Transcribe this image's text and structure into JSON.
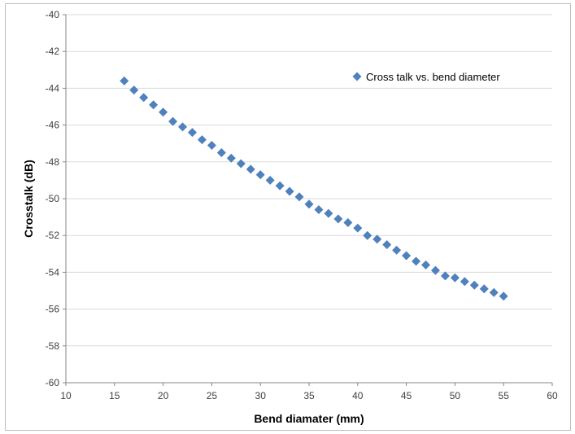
{
  "chart_data": {
    "type": "scatter",
    "title": "",
    "xlabel": "Bend diamater (mm)",
    "ylabel": "Crosstalk (dB)",
    "xlim": [
      10,
      60
    ],
    "ylim": [
      -60,
      -40
    ],
    "xticks": [
      10,
      15,
      20,
      25,
      30,
      35,
      40,
      45,
      50,
      55,
      60
    ],
    "yticks": [
      -40,
      -42,
      -44,
      -46,
      -48,
      -50,
      -52,
      -54,
      -56,
      -58,
      -60
    ],
    "grid": "horizontal",
    "legend_position": "top-right",
    "marker": "diamond",
    "series": [
      {
        "name": "Cross talk vs. bend diameter",
        "color": "#4f81bd",
        "points": [
          [
            16,
            -43.6
          ],
          [
            17,
            -44.1
          ],
          [
            18,
            -44.5
          ],
          [
            19,
            -44.9
          ],
          [
            20,
            -45.3
          ],
          [
            21,
            -45.8
          ],
          [
            22,
            -46.1
          ],
          [
            23,
            -46.4
          ],
          [
            24,
            -46.8
          ],
          [
            25,
            -47.1
          ],
          [
            26,
            -47.5
          ],
          [
            27,
            -47.8
          ],
          [
            28,
            -48.1
          ],
          [
            29,
            -48.4
          ],
          [
            30,
            -48.7
          ],
          [
            31,
            -49.0
          ],
          [
            32,
            -49.3
          ],
          [
            33,
            -49.6
          ],
          [
            34,
            -49.9
          ],
          [
            35,
            -50.3
          ],
          [
            36,
            -50.6
          ],
          [
            37,
            -50.8
          ],
          [
            38,
            -51.1
          ],
          [
            39,
            -51.3
          ],
          [
            40,
            -51.6
          ],
          [
            41,
            -52.0
          ],
          [
            42,
            -52.2
          ],
          [
            43,
            -52.5
          ],
          [
            44,
            -52.8
          ],
          [
            45,
            -53.1
          ],
          [
            46,
            -53.4
          ],
          [
            47,
            -53.6
          ],
          [
            48,
            -53.9
          ],
          [
            49,
            -54.2
          ],
          [
            50,
            -54.3
          ],
          [
            51,
            -54.5
          ],
          [
            52,
            -54.7
          ],
          [
            53,
            -54.9
          ],
          [
            54,
            -55.1
          ],
          [
            55,
            -55.3
          ]
        ]
      }
    ]
  }
}
